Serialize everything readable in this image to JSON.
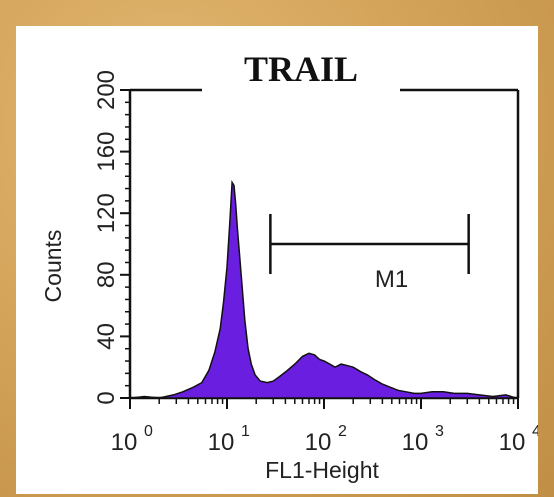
{
  "chart_data": {
    "type": "area",
    "title": "TRAIL",
    "xlabel": "FL1-Height",
    "ylabel": "Counts",
    "x_scale": "log",
    "xlim": [
      1,
      10000
    ],
    "ylim": [
      0,
      200
    ],
    "x_ticks": [
      {
        "value": 1,
        "base": "10",
        "exp": "0"
      },
      {
        "value": 10,
        "base": "10",
        "exp": "1"
      },
      {
        "value": 100,
        "base": "10",
        "exp": "2"
      },
      {
        "value": 1000,
        "base": "10",
        "exp": "3"
      },
      {
        "value": 10000,
        "base": "10",
        "exp": "4"
      }
    ],
    "y_ticks": [
      0,
      40,
      80,
      120,
      160,
      200
    ],
    "fill_color": "#6a1ee0",
    "marker": {
      "name": "M1",
      "x_start": 28,
      "x_end": 3100
    },
    "series": [
      {
        "x": [
          1.05,
          1.4,
          2,
          2.8,
          3.5,
          4.5,
          5.5,
          6.5,
          7.5,
          8.5,
          9.2,
          10,
          10.7,
          11.3,
          11.8,
          12.3,
          12.8,
          13.4,
          14.2,
          15.3,
          16.5,
          17.8,
          19.5,
          22,
          26,
          30,
          35,
          42,
          50,
          60,
          70,
          80,
          90,
          100,
          115,
          130,
          150,
          175,
          200,
          240,
          280,
          330,
          400,
          480,
          580,
          700,
          850,
          1000,
          1300,
          1700,
          2200,
          3000,
          4000,
          5500,
          7500,
          9500
        ],
        "y": [
          0,
          1,
          0,
          2,
          4,
          7,
          10,
          18,
          30,
          45,
          62,
          85,
          115,
          140,
          138,
          126,
          110,
          95,
          75,
          50,
          32,
          22,
          15,
          11,
          10,
          11,
          14,
          18,
          22,
          27,
          29,
          28,
          25,
          24,
          22,
          20,
          22,
          21,
          20,
          17,
          15,
          12,
          9,
          7,
          5,
          4,
          3,
          3,
          4,
          4,
          3,
          3,
          2,
          1,
          2,
          0
        ]
      }
    ]
  }
}
